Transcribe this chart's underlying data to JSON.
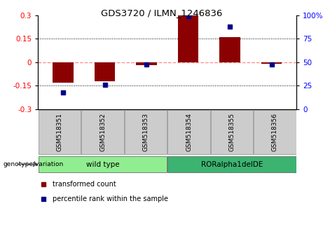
{
  "title": "GDS3720 / ILMN_1246836",
  "samples": [
    "GSM518351",
    "GSM518352",
    "GSM518353",
    "GSM518354",
    "GSM518355",
    "GSM518356"
  ],
  "bar_values": [
    -0.13,
    -0.12,
    -0.02,
    0.3,
    0.16,
    -0.01
  ],
  "scatter_values": [
    18,
    26,
    48,
    99,
    88,
    48
  ],
  "bar_color": "#8B0000",
  "scatter_color": "#00008B",
  "ylim_left": [
    -0.3,
    0.3
  ],
  "ylim_right": [
    0,
    100
  ],
  "yticks_left": [
    -0.3,
    -0.15,
    0,
    0.15,
    0.3
  ],
  "yticks_right": [
    0,
    25,
    50,
    75,
    100
  ],
  "group_label": "genotype/variation",
  "legend_bar": "transformed count",
  "legend_scatter": "percentile rank within the sample",
  "hline_color": "#FF8888",
  "grid_color": "black",
  "bar_width": 0.5,
  "groups": [
    {
      "name": "wild type",
      "start": 0,
      "end": 2,
      "color": "#90EE90"
    },
    {
      "name": "RORalpha1delDE",
      "start": 3,
      "end": 5,
      "color": "#3CB371"
    }
  ]
}
